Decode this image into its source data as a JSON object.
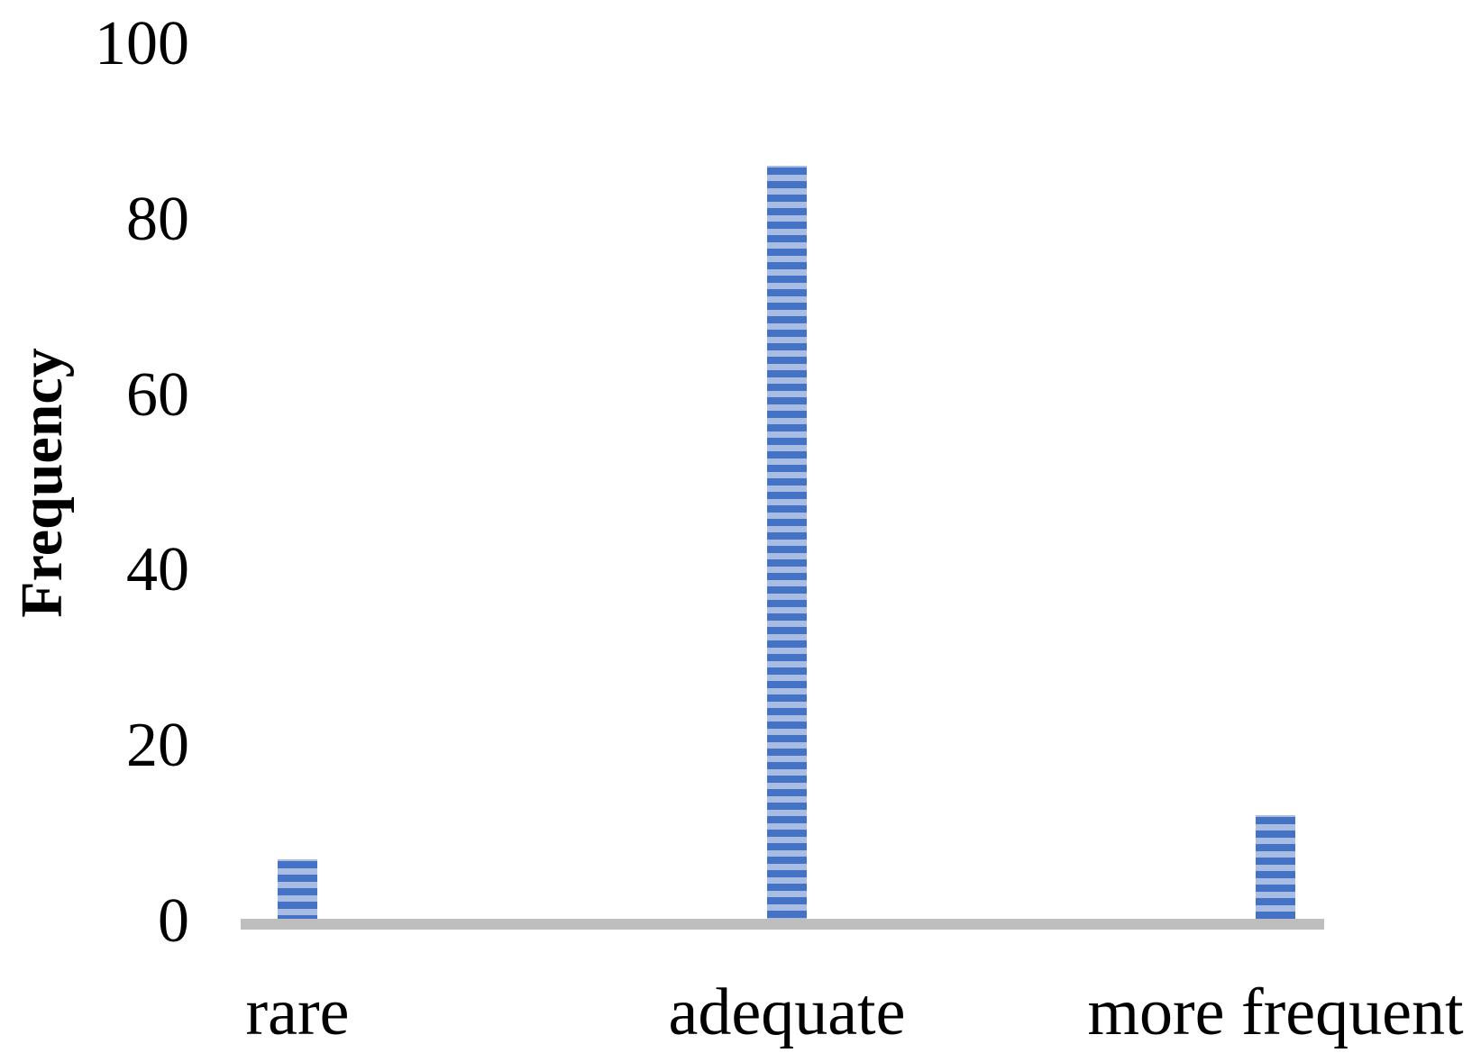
{
  "chart_data": {
    "type": "bar",
    "title": "",
    "xlabel": "",
    "ylabel": "Frequency",
    "categories": [
      "rare",
      "adequate",
      "more frequent"
    ],
    "values": [
      7,
      86,
      12
    ],
    "ylim": [
      0,
      100
    ],
    "yticks": [
      0,
      20,
      40,
      60,
      80,
      100
    ],
    "grid": false,
    "legend": false,
    "bar_fill_style": "horizontal-stripes",
    "colors": {
      "bar_stripe_dark": "#4472C4",
      "bar_stripe_light": "#A8BCE4",
      "axis_line": "#BEBEBE",
      "text": "#000000",
      "background": "#FFFFFF"
    }
  }
}
